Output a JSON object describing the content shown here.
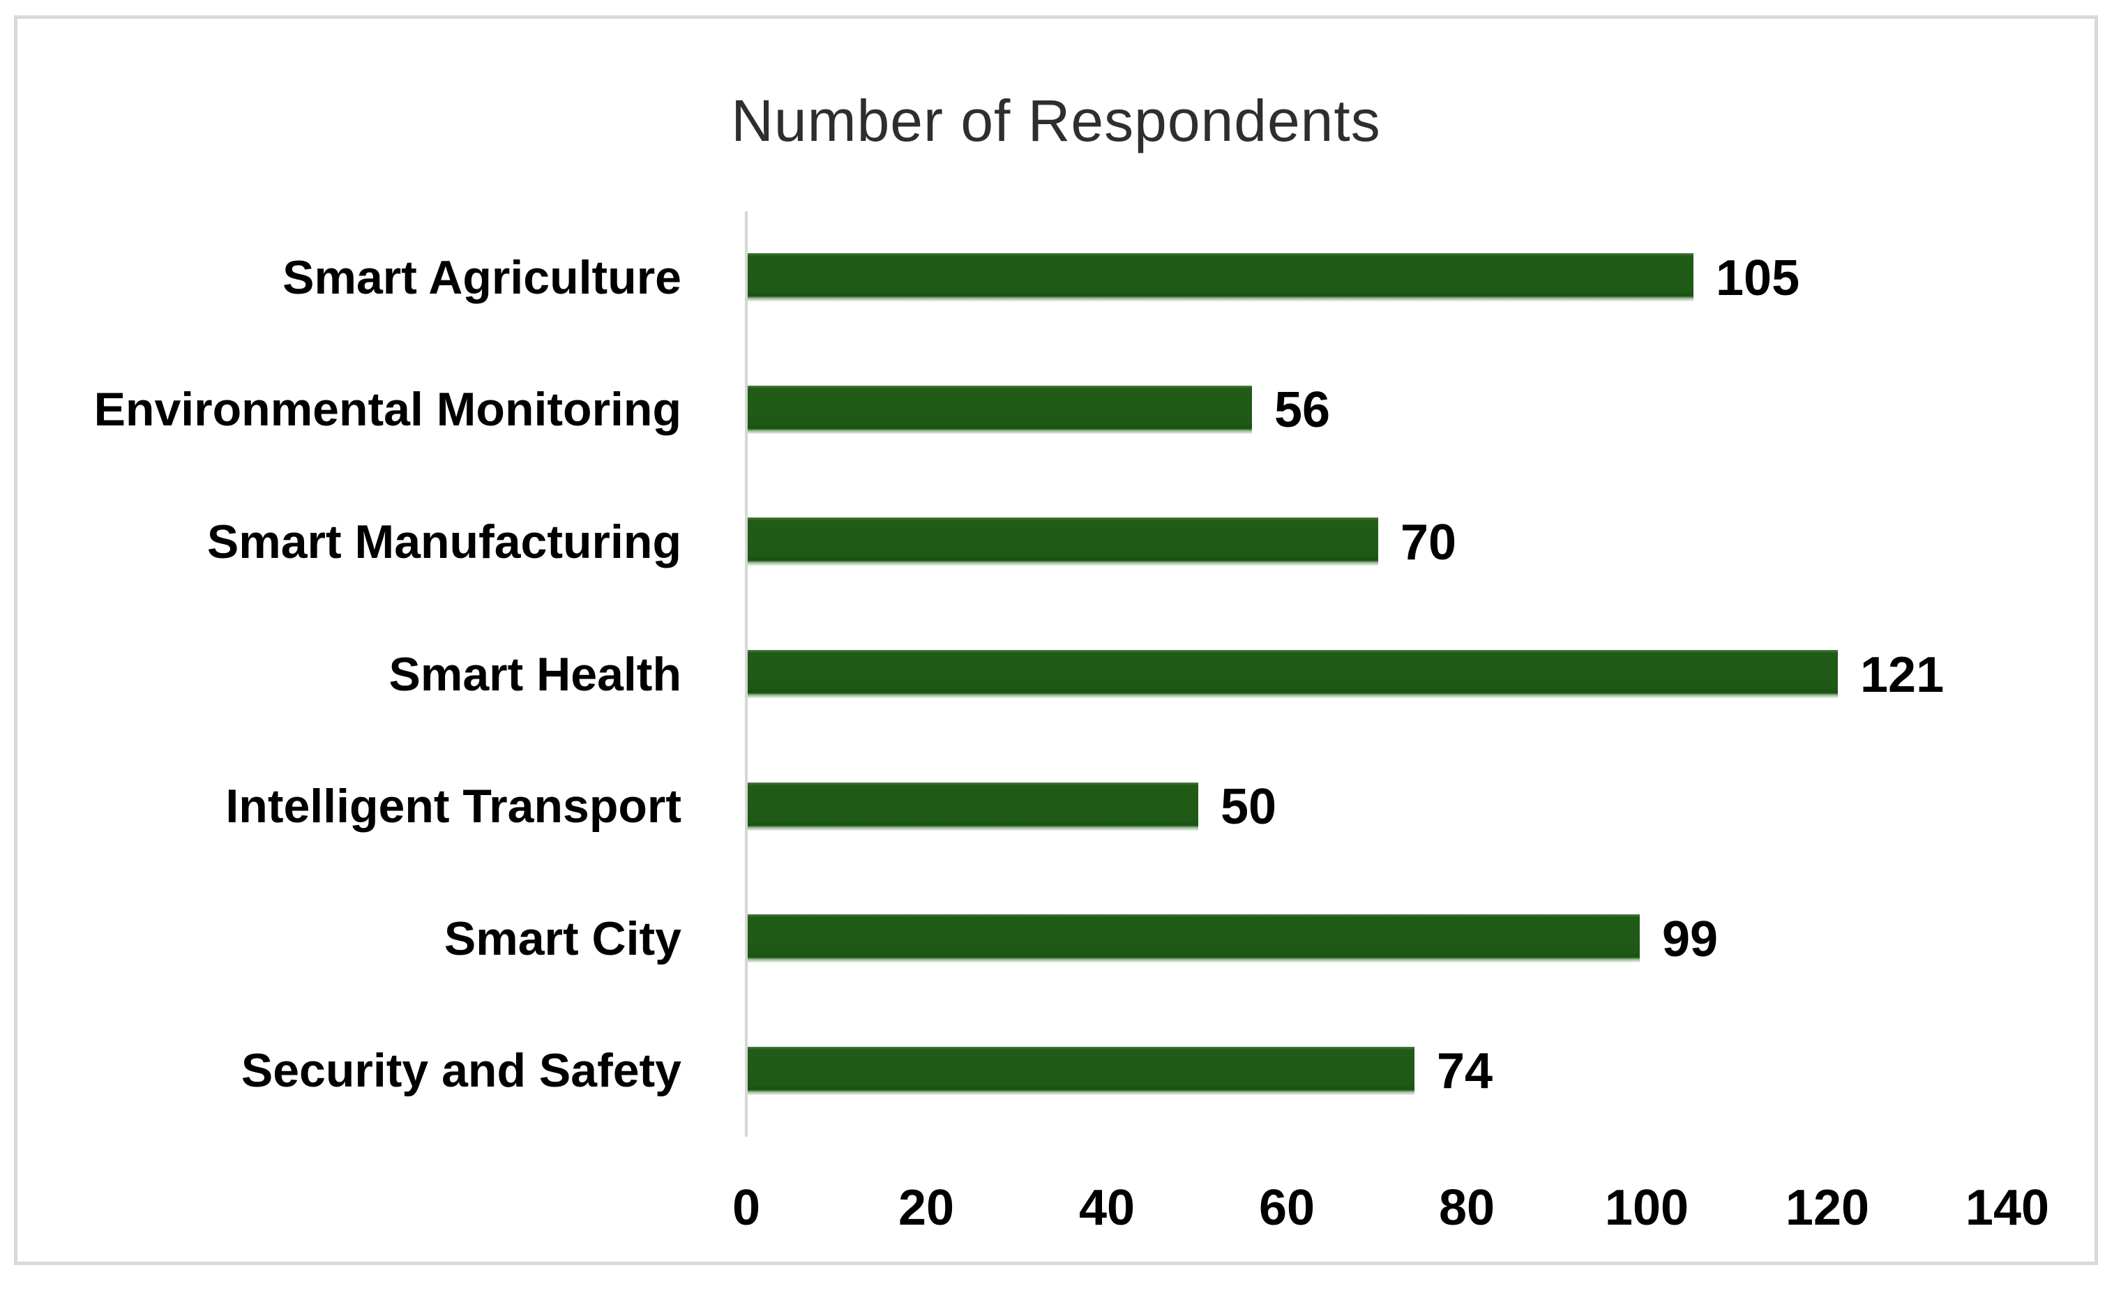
{
  "chart_data": {
    "type": "bar",
    "orientation": "horizontal",
    "title": "Number of Respondents",
    "categories": [
      "Smart Agriculture",
      "Environmental Monitoring",
      "Smart Manufacturing",
      "Smart Health",
      "Intelligent Transport",
      "Smart City",
      "Security and Safety"
    ],
    "values": [
      105,
      56,
      70,
      121,
      50,
      99,
      74
    ],
    "data_labels": [
      "105",
      "56",
      "70",
      "121",
      "50",
      "99",
      "74"
    ],
    "xlim": [
      0,
      140
    ],
    "x_ticks": [
      "0",
      "20",
      "40",
      "60",
      "80",
      "100",
      "120",
      "140"
    ],
    "xlabel": "",
    "ylabel": "",
    "grid": false,
    "legend": false
  },
  "colors": {
    "bar_fill": "#1e5915",
    "axis_line": "#d6d6d6",
    "frame_border": "#d9d9d9",
    "title_text": "#2e2e2e",
    "label_text": "#000000",
    "background": "#ffffff"
  }
}
